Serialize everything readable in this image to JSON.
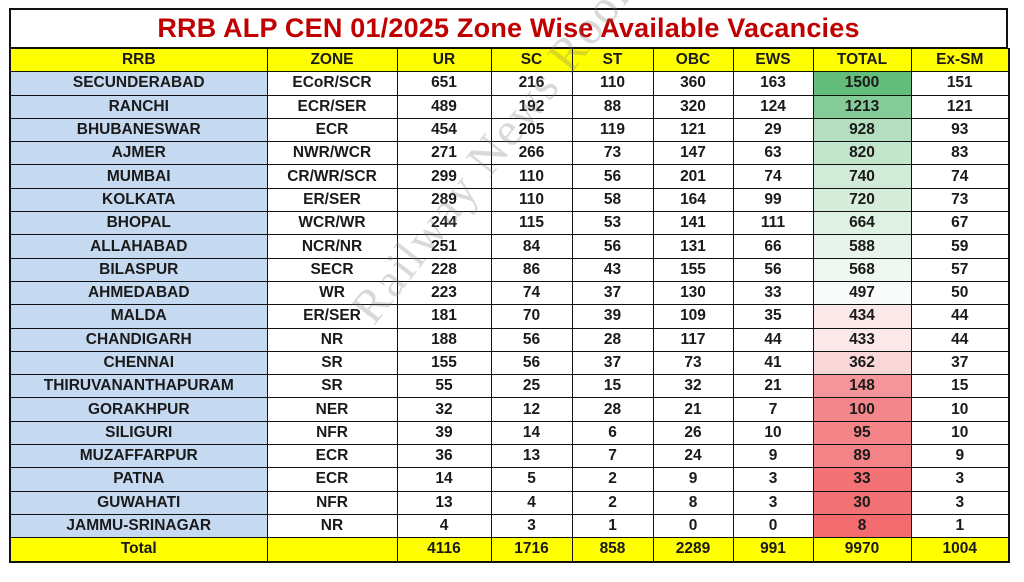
{
  "title": "RRB ALP CEN 01/2025 Zone Wise Available Vacancies",
  "columns": [
    "RRB",
    "ZONE",
    "UR",
    "SC",
    "ST",
    "OBC",
    "EWS",
    "TOTAL",
    "Ex-SM"
  ],
  "rows": [
    {
      "rrb": "SECUNDERABAD",
      "zone": "ECoR/SCR",
      "ur": "651",
      "sc": "216",
      "st": "110",
      "obc": "360",
      "ews": "163",
      "total": "1500",
      "exsm": "151",
      "total_color": "#63be7b"
    },
    {
      "rrb": "RANCHI",
      "zone": "ECR/SER",
      "ur": "489",
      "sc": "192",
      "st": "88",
      "obc": "320",
      "ews": "124",
      "total": "1213",
      "exsm": "121",
      "total_color": "#85cc98"
    },
    {
      "rrb": "BHUBANESWAR",
      "zone": "ECR",
      "ur": "454",
      "sc": "205",
      "st": "119",
      "obc": "121",
      "ews": "29",
      "total": "928",
      "exsm": "93",
      "total_color": "#b5dfc0"
    },
    {
      "rrb": "AJMER",
      "zone": "NWR/WCR",
      "ur": "271",
      "sc": "266",
      "st": "73",
      "obc": "147",
      "ews": "63",
      "total": "820",
      "exsm": "83",
      "total_color": "#c3e5cc"
    },
    {
      "rrb": "MUMBAI",
      "zone": "CR/WR/SCR",
      "ur": "299",
      "sc": "110",
      "st": "56",
      "obc": "201",
      "ews": "74",
      "total": "740",
      "exsm": "74",
      "total_color": "#d2ebd8"
    },
    {
      "rrb": "KOLKATA",
      "zone": "ER/SER",
      "ur": "289",
      "sc": "110",
      "st": "58",
      "obc": "164",
      "ews": "99",
      "total": "720",
      "exsm": "73",
      "total_color": "#d6eddc"
    },
    {
      "rrb": "BHOPAL",
      "zone": "WCR/WR",
      "ur": "244",
      "sc": "115",
      "st": "53",
      "obc": "141",
      "ews": "111",
      "total": "664",
      "exsm": "67",
      "total_color": "#dff1e3"
    },
    {
      "rrb": "ALLAHABAD",
      "zone": "NCR/NR",
      "ur": "251",
      "sc": "84",
      "st": "56",
      "obc": "131",
      "ews": "66",
      "total": "588",
      "exsm": "59",
      "total_color": "#e8f4eb"
    },
    {
      "rrb": "BILASPUR",
      "zone": "SECR",
      "ur": "228",
      "sc": "86",
      "st": "43",
      "obc": "155",
      "ews": "56",
      "total": "568",
      "exsm": "57",
      "total_color": "#eef7f0"
    },
    {
      "rrb": "AHMEDABAD",
      "zone": "WR",
      "ur": "223",
      "sc": "74",
      "st": "37",
      "obc": "130",
      "ews": "33",
      "total": "497",
      "exsm": "50",
      "total_color": "#f8fbf9"
    },
    {
      "rrb": "MALDA",
      "zone": "ER/SER",
      "ur": "181",
      "sc": "70",
      "st": "39",
      "obc": "109",
      "ews": "35",
      "total": "434",
      "exsm": "44",
      "total_color": "#fbe8e9"
    },
    {
      "rrb": "CHANDIGARH",
      "zone": "NR",
      "ur": "188",
      "sc": "56",
      "st": "28",
      "obc": "117",
      "ews": "44",
      "total": "433",
      "exsm": "44",
      "total_color": "#fbe8e9"
    },
    {
      "rrb": "CHENNAI",
      "zone": "SR",
      "ur": "155",
      "sc": "56",
      "st": "37",
      "obc": "73",
      "ews": "41",
      "total": "362",
      "exsm": "37",
      "total_color": "#f9d7d9"
    },
    {
      "rrb": "THIRUVANANTHAPURAM",
      "zone": "SR",
      "ur": "55",
      "sc": "25",
      "st": "15",
      "obc": "32",
      "ews": "21",
      "total": "148",
      "exsm": "15",
      "total_color": "#f4959a"
    },
    {
      "rrb": "GORAKHPUR",
      "zone": "NER",
      "ur": "32",
      "sc": "12",
      "st": "28",
      "obc": "21",
      "ews": "7",
      "total": "100",
      "exsm": "10",
      "total_color": "#f3868b"
    },
    {
      "rrb": "SILIGURI",
      "zone": "NFR",
      "ur": "39",
      "sc": "14",
      "st": "6",
      "obc": "26",
      "ews": "10",
      "total": "95",
      "exsm": "10",
      "total_color": "#f38589"
    },
    {
      "rrb": "MUZAFFARPUR",
      "zone": "ECR",
      "ur": "36",
      "sc": "13",
      "st": "7",
      "obc": "24",
      "ews": "9",
      "total": "89",
      "exsm": "9",
      "total_color": "#f38387"
    },
    {
      "rrb": "PATNA",
      "zone": "ECR",
      "ur": "14",
      "sc": "5",
      "st": "2",
      "obc": "9",
      "ews": "3",
      "total": "33",
      "exsm": "3",
      "total_color": "#f27276"
    },
    {
      "rrb": "GUWAHATI",
      "zone": "NFR",
      "ur": "13",
      "sc": "4",
      "st": "2",
      "obc": "8",
      "ews": "3",
      "total": "30",
      "exsm": "3",
      "total_color": "#f27175"
    },
    {
      "rrb": "JAMMU-SRINAGAR",
      "zone": "NR",
      "ur": "4",
      "sc": "3",
      "st": "1",
      "obc": "0",
      "ews": "0",
      "total": "8",
      "exsm": "1",
      "total_color": "#f26b6f"
    }
  ],
  "totals": {
    "label": "Total",
    "zone": "",
    "ur": "4116",
    "sc": "1716",
    "st": "858",
    "obc": "2289",
    "ews": "991",
    "total": "9970",
    "exsm": "1004"
  },
  "watermark": "Railway News Room",
  "colors": {
    "title": "#c00000",
    "header_bg": "#ffff00",
    "rrb_bg": "#c5d9f1",
    "total_bg": "#ffff00"
  }
}
